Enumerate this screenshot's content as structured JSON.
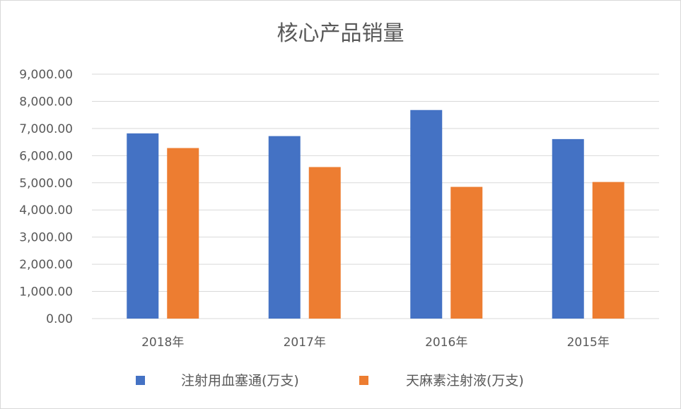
{
  "chart_data": {
    "type": "bar",
    "title": "核心产品销量",
    "categories": [
      "2018年",
      "2017年",
      "2016年",
      "2015年"
    ],
    "series": [
      {
        "name": "注射用血塞通(万支)",
        "color": "#4472C4",
        "values": [
          6820,
          6720,
          7680,
          6610
        ]
      },
      {
        "name": "天麻素注射液(万支)",
        "color": "#ED7D31",
        "values": [
          6280,
          5580,
          4850,
          5030
        ]
      }
    ],
    "ylim": [
      0,
      9000
    ],
    "yticks": [
      "0.00",
      "1,000.00",
      "2,000.00",
      "3,000.00",
      "4,000.00",
      "5,000.00",
      "6,000.00",
      "7,000.00",
      "8,000.00",
      "9,000.00"
    ],
    "ytick_values": [
      0,
      1000,
      2000,
      3000,
      4000,
      5000,
      6000,
      7000,
      8000,
      9000
    ],
    "grid": true,
    "gridline_color": "#d9d9d9",
    "legend_position": "bottom"
  }
}
